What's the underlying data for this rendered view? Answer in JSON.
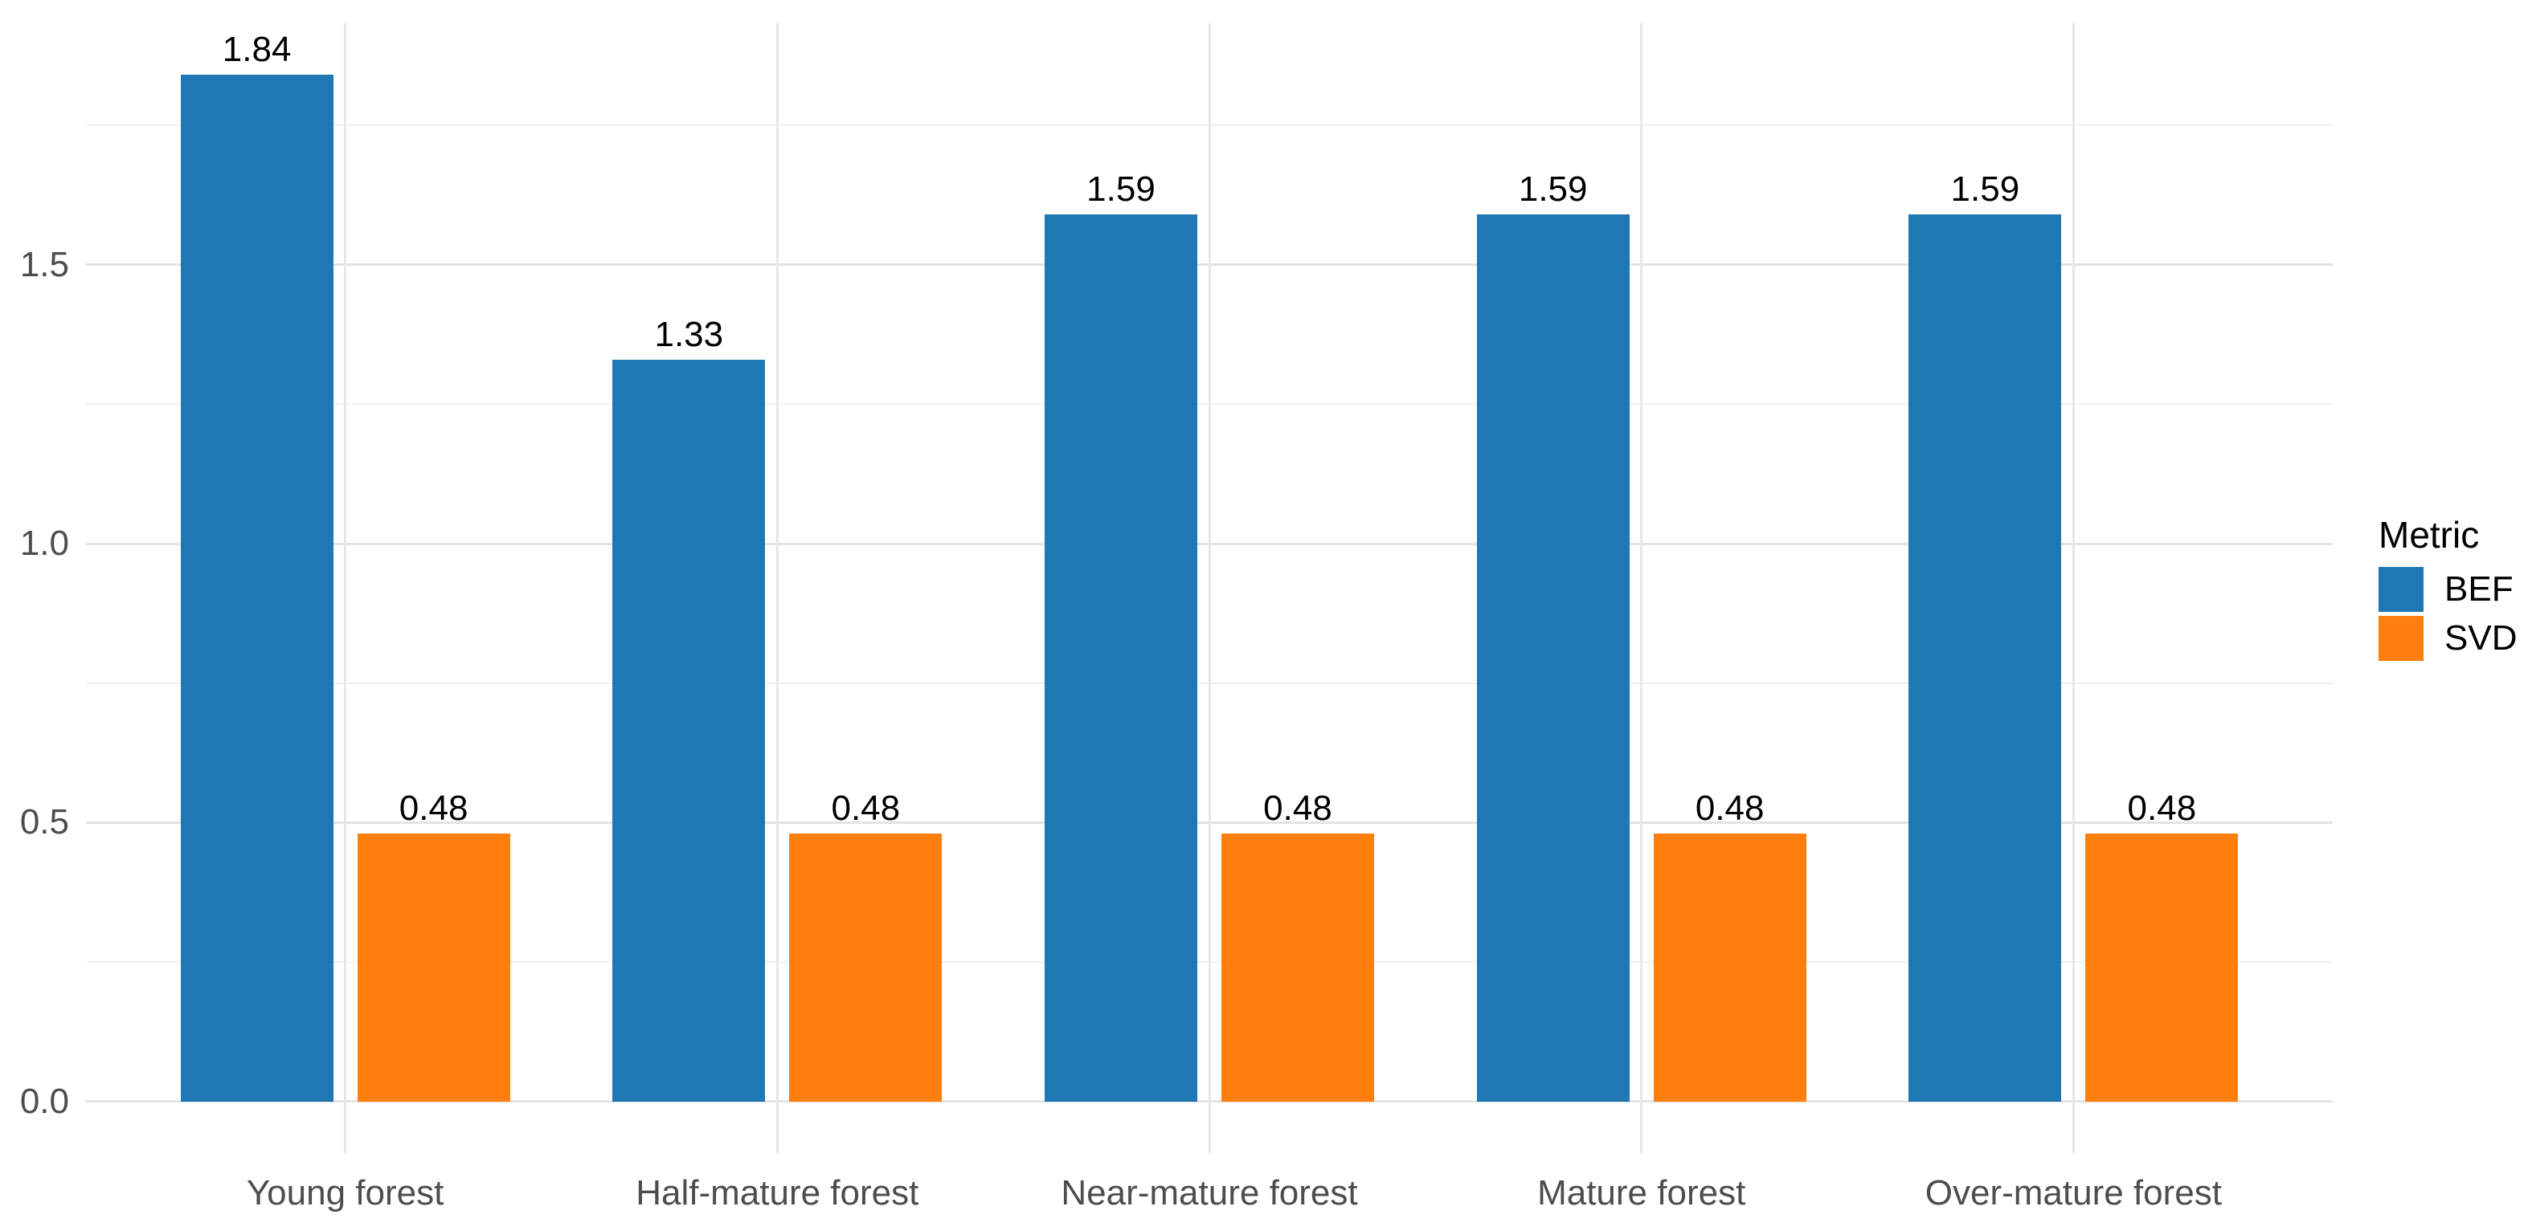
{
  "chart_data": {
    "type": "bar",
    "title": "",
    "categories": [
      "Young forest",
      "Half-mature forest",
      "Near-mature forest",
      "Mature forest",
      "Over-mature forest"
    ],
    "series": [
      {
        "name": "BEF",
        "color": "#1f77b4",
        "values": [
          1.84,
          1.33,
          1.59,
          1.59,
          1.59
        ],
        "labels": [
          "1.84",
          "1.33",
          "1.59",
          "1.59",
          "1.59"
        ]
      },
      {
        "name": "SVD",
        "color": "#ff7f0e",
        "values": [
          0.48,
          0.48,
          0.48,
          0.48,
          0.48
        ],
        "labels": [
          "0.48",
          "0.48",
          "0.48",
          "0.48",
          "0.48"
        ]
      }
    ],
    "y_axis": {
      "ticks": [
        0,
        0.5,
        1.0,
        1.5
      ],
      "tick_labels": [
        "0.0",
        "0.5",
        "1.0",
        "1.5"
      ],
      "minor_ticks": [
        0.25,
        0.75,
        1.25,
        1.75
      ],
      "ylim": [
        -0.0921,
        1.9324
      ]
    },
    "x_axis": {
      "label": ""
    },
    "legend": {
      "title": "Metric",
      "position": "right",
      "entries": [
        "BEF",
        "SVD"
      ]
    },
    "grid": {
      "show": true,
      "major_color": "#e3e3e3",
      "minor_color": "#f0f0f0"
    },
    "colors": {
      "axis_text": "#4d4d4d",
      "value_label": "#000000",
      "background": "#ffffff"
    }
  }
}
